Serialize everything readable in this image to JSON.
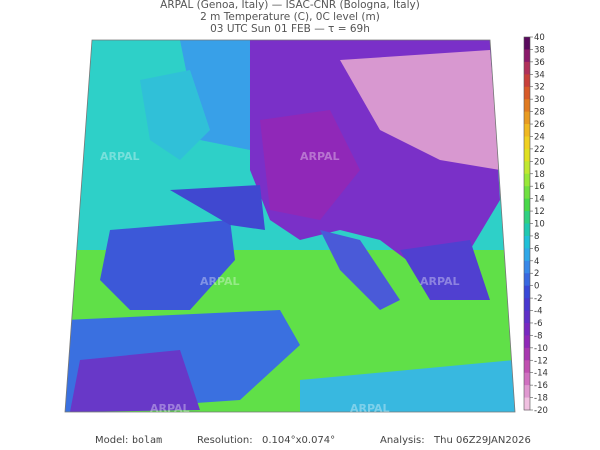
{
  "header": {
    "line1": "ARPAL (Genoa, Italy)  —  ISAC-CNR (Bologna, Italy)",
    "line2": "2 m Temperature (C), 0C level (m)",
    "line3": "03 UTC Sun 01 FEB   —   τ = 69h"
  },
  "watermark": "ARPAL",
  "colorbar": {
    "ticks": [
      40,
      38,
      36,
      34,
      32,
      30,
      28,
      26,
      24,
      22,
      20,
      18,
      16,
      14,
      12,
      10,
      8,
      6,
      4,
      2,
      0,
      -2,
      -4,
      -6,
      -8,
      -10,
      -12,
      -14,
      -16,
      -18,
      -20
    ],
    "colors": [
      "#5a0a5e",
      "#8a1a6a",
      "#b0305a",
      "#c8403a",
      "#d85a28",
      "#e07a20",
      "#e89a20",
      "#f0b820",
      "#f0d020",
      "#e0e020",
      "#c0e830",
      "#98e838",
      "#70e040",
      "#48d848",
      "#30d080",
      "#20c8b0",
      "#20c0d8",
      "#30a8e8",
      "#3888e8",
      "#3868e0",
      "#3848d8",
      "#4838d0",
      "#6030c8",
      "#7828c0",
      "#9028b8",
      "#a838b0",
      "#c050b0",
      "#d070c0",
      "#e098d0",
      "#f0c0e0"
    ]
  },
  "footer": {
    "model_label": "Model:",
    "model": "bolam",
    "resolution_label": "Resolution:",
    "resolution": "0.104°x0.074°",
    "analysis_label": "Analysis:",
    "analysis": "Thu 06Z29JAN2026"
  }
}
